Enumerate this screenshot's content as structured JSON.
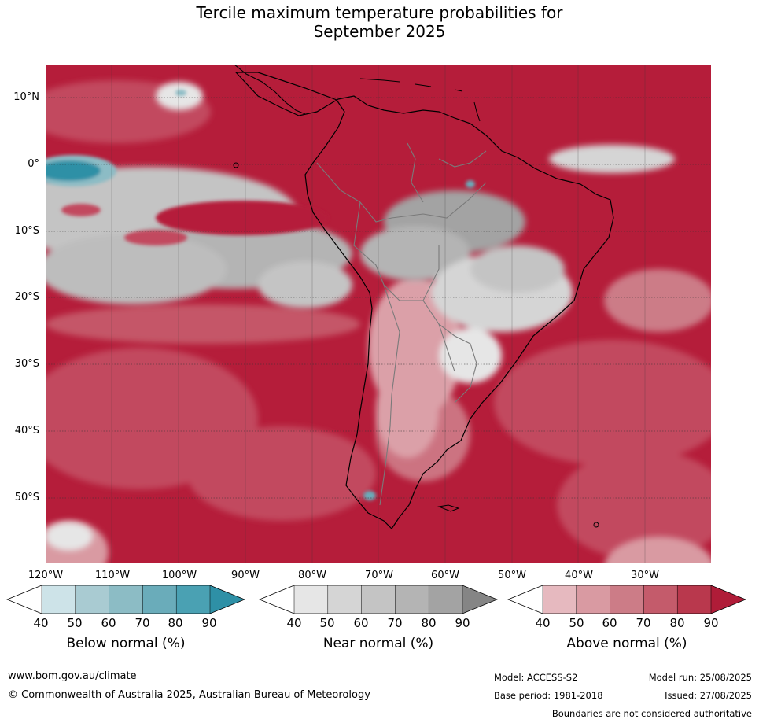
{
  "title_line1": "Tercile maximum temperature probabilities for",
  "title_line2": "September 2025",
  "lat_labels": [
    "10°N",
    "0°",
    "10°S",
    "20°S",
    "30°S",
    "40°S",
    "50°S"
  ],
  "lon_labels": [
    "120°W",
    "110°W",
    "100°W",
    "90°W",
    "80°W",
    "70°W",
    "60°W",
    "50°W",
    "40°W",
    "30°W"
  ],
  "colorbars": [
    {
      "title": "Below normal (%)",
      "ticks": [
        "40",
        "50",
        "60",
        "70",
        "80",
        "90"
      ],
      "colors": [
        "#ffffff",
        "#cde3e8",
        "#a9cbd2",
        "#8cbcc5",
        "#6aacba",
        "#4aa1b3",
        "#2e90a6"
      ]
    },
    {
      "title": "Near normal (%)",
      "ticks": [
        "40",
        "50",
        "60",
        "70",
        "80",
        "90"
      ],
      "colors": [
        "#ffffff",
        "#e6e6e6",
        "#d5d5d5",
        "#c4c4c4",
        "#b4b4b4",
        "#a3a3a3",
        "#858585"
      ]
    },
    {
      "title": "Above normal (%)",
      "ticks": [
        "40",
        "50",
        "60",
        "70",
        "80",
        "90"
      ],
      "colors": [
        "#ffffff",
        "#e6b9bf",
        "#d99aa2",
        "#cc7c87",
        "#c45b6b",
        "#b9384d",
        "#b01c38"
      ]
    }
  ],
  "footer": {
    "website": "www.bom.gov.au/climate",
    "copyright": "© Commonwealth of Australia 2025, Australian Bureau of Meteorology",
    "model": "Model: ACCESS-S2",
    "base_period": "Base period: 1981-2018",
    "model_run": "Model run: 25/08/2025",
    "issued": "Issued: 27/08/2025",
    "disclaimer": "Boundaries are not considered authoritative"
  }
}
